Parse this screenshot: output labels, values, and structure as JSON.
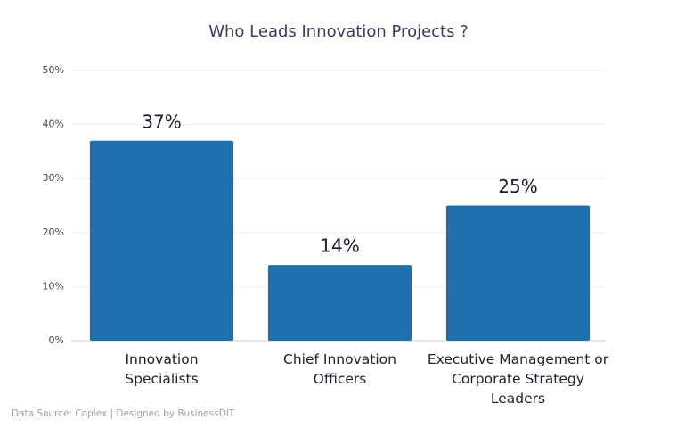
{
  "chart_data": {
    "type": "bar",
    "title": "Who Leads Innovation Projects ?",
    "categories": [
      "Innovation Specialists",
      "Chief Innovation Officers",
      "Executive Management or Corporate Strategy Leaders"
    ],
    "values": [
      37,
      14,
      25
    ],
    "value_labels": [
      "37%",
      "14%",
      "25%"
    ],
    "color": "#1f70ad",
    "ylim": [
      0,
      50
    ],
    "yticks": [
      {
        "value": 0,
        "label": "0%"
      },
      {
        "value": 10,
        "label": "10%"
      },
      {
        "value": 20,
        "label": "20%"
      },
      {
        "value": 30,
        "label": "30%"
      },
      {
        "value": 40,
        "label": "40%"
      },
      {
        "value": 50,
        "label": "50%"
      }
    ],
    "grid": true,
    "source": "Data Source: Coplex | Designed by BusinessDIT"
  }
}
